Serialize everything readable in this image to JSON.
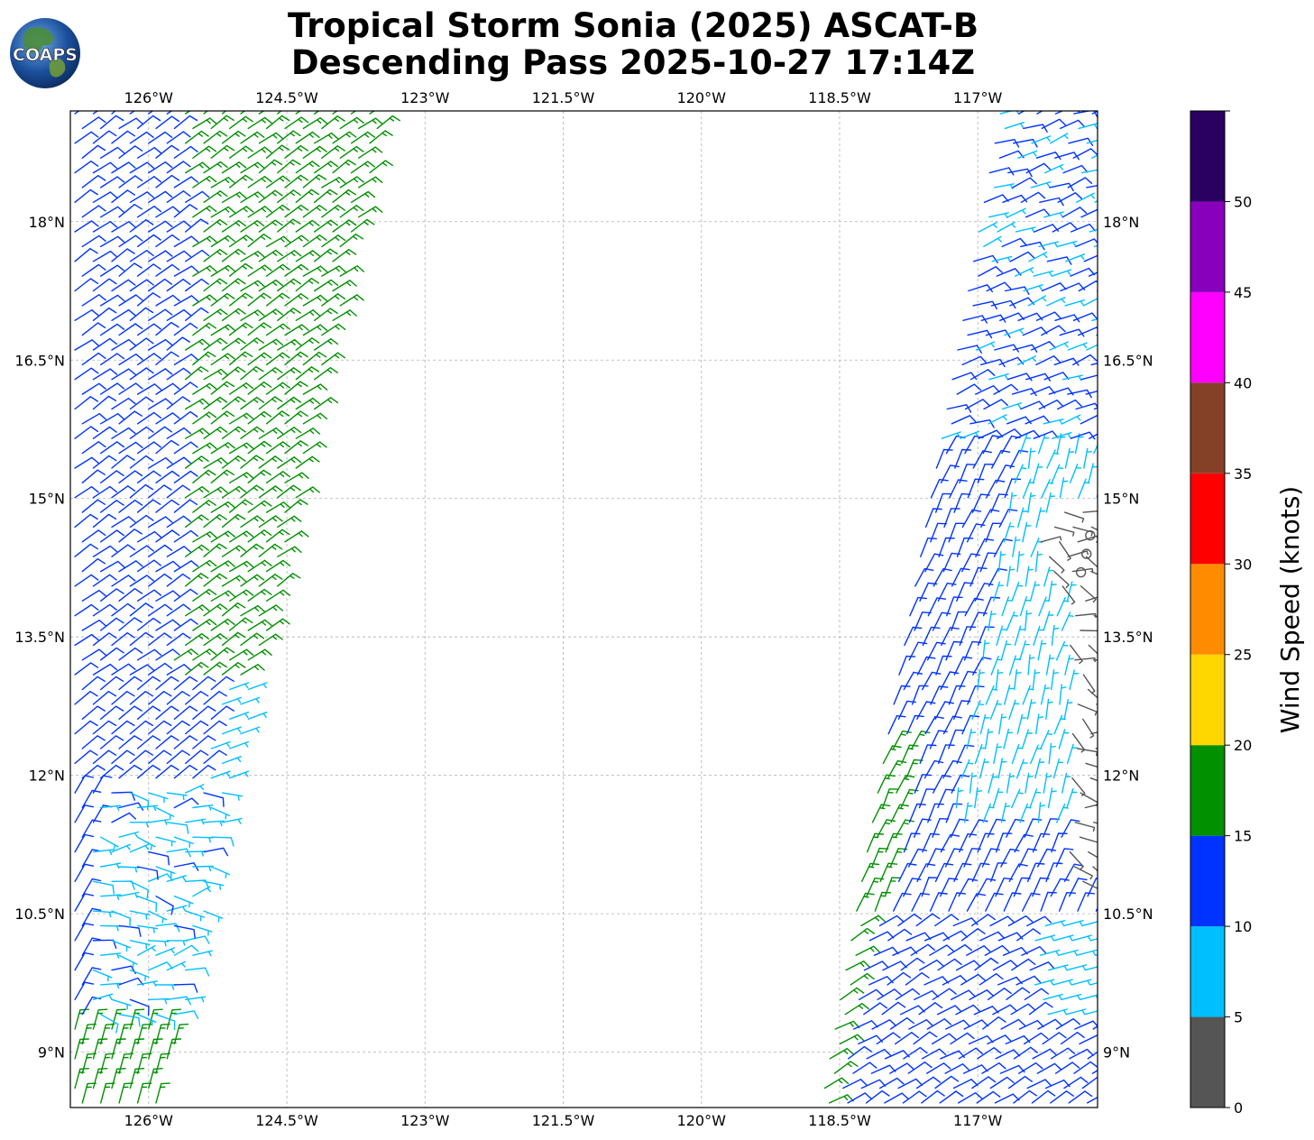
{
  "title_line1": "Tropical Storm Sonia (2025) ASCAT-B",
  "title_line2": "Descending Pass 2025-10-27 17:14Z",
  "logo_text": "COAPS",
  "map": {
    "lon_range": [
      -126.85,
      -115.7
    ],
    "lat_range": [
      8.4,
      19.2
    ],
    "lon_ticks": [
      {
        "value": -126.0,
        "label": "126°W"
      },
      {
        "value": -124.5,
        "label": "124.5°W"
      },
      {
        "value": -123.0,
        "label": "123°W"
      },
      {
        "value": -121.5,
        "label": "121.5°W"
      },
      {
        "value": -120.0,
        "label": "120°W"
      },
      {
        "value": -118.5,
        "label": "118.5°W"
      },
      {
        "value": -117.0,
        "label": "117°W"
      }
    ],
    "lat_ticks": [
      {
        "value": 18.0,
        "label": "18°N"
      },
      {
        "value": 16.5,
        "label": "16.5°N"
      },
      {
        "value": 15.0,
        "label": "15°N"
      },
      {
        "value": 13.5,
        "label": "13.5°N"
      },
      {
        "value": 12.0,
        "label": "12°N"
      },
      {
        "value": 10.5,
        "label": "10.5°N"
      },
      {
        "value": 9.0,
        "label": "9°N"
      }
    ],
    "gridlines": true
  },
  "colorbar": {
    "label": "Wind Speed (knots)",
    "bins": [
      {
        "min": 0,
        "max": 5,
        "color": "#555555"
      },
      {
        "min": 5,
        "max": 10,
        "color": "#00bfff"
      },
      {
        "min": 10,
        "max": 15,
        "color": "#0033ff"
      },
      {
        "min": 15,
        "max": 20,
        "color": "#009000"
      },
      {
        "min": 20,
        "max": 25,
        "color": "#ffd700"
      },
      {
        "min": 25,
        "max": 30,
        "color": "#ff8c00"
      },
      {
        "min": 30,
        "max": 35,
        "color": "#ff0000"
      },
      {
        "min": 35,
        "max": 40,
        "color": "#844128"
      },
      {
        "min": 40,
        "max": 45,
        "color": "#ff00ff"
      },
      {
        "min": 45,
        "max": 50,
        "color": "#8800bb"
      },
      {
        "min": 50,
        "max": 55,
        "color": "#2a0060"
      }
    ],
    "ticks": [
      {
        "value": 0,
        "label": "0"
      },
      {
        "value": 5,
        "label": "5"
      },
      {
        "value": 10,
        "label": "10"
      },
      {
        "value": 15,
        "label": "15"
      },
      {
        "value": 20,
        "label": "20"
      },
      {
        "value": 25,
        "label": "25"
      },
      {
        "value": 30,
        "label": "30"
      },
      {
        "value": 35,
        "label": "35"
      },
      {
        "value": 40,
        "label": "40"
      },
      {
        "value": 45,
        "label": "45"
      },
      {
        "value": 50,
        "label": "50"
      }
    ]
  },
  "swaths": {
    "west": {
      "lat_range": [
        8.4,
        19.2
      ],
      "west_edge_lon": [
        -126.85,
        -126.85
      ],
      "east_edge_lon": [
        -125.85,
        -123.45
      ],
      "regions": [
        {
          "lat_min": 13.0,
          "lat_max": 19.2,
          "speed": 17,
          "dir_deg": 55,
          "note_side": "east"
        },
        {
          "lat_min": 11.9,
          "lat_max": 19.2,
          "speed": 12,
          "dir_deg": 50,
          "note_side": "west"
        },
        {
          "lat_min": 9.4,
          "lat_max": 11.9,
          "speed": 8,
          "dir_deg": 80,
          "note_side": "all"
        },
        {
          "lat_min": 8.4,
          "lat_max": 9.4,
          "speed": 16,
          "dir_deg": 15,
          "note_side": "all"
        }
      ]
    },
    "east": {
      "lat_range": [
        8.4,
        19.2
      ],
      "west_edge_lon": [
        -118.75,
        -116.8
      ],
      "east_edge_lon": [
        -115.7,
        -115.7
      ],
      "regions": [
        {
          "lat_min": 8.4,
          "lat_max": 10.5,
          "speed": 12,
          "dir_deg": 60
        },
        {
          "lat_min": 10.5,
          "lat_max": 13.5,
          "speed": 11,
          "dir_deg": 25
        },
        {
          "lat_min": 11.5,
          "lat_max": 15.5,
          "speed": 8,
          "dir_deg": 15
        },
        {
          "lat_min": 15.5,
          "lat_max": 19.2,
          "speed": 12,
          "dir_deg": 70
        },
        {
          "lat_min": 10.8,
          "lat_max": 15.0,
          "speed": 3,
          "dir_deg": 110
        }
      ],
      "calm_points": [
        [
          -115.78,
          14.6
        ],
        [
          -115.82,
          14.4
        ],
        [
          -115.88,
          14.2
        ]
      ]
    }
  }
}
